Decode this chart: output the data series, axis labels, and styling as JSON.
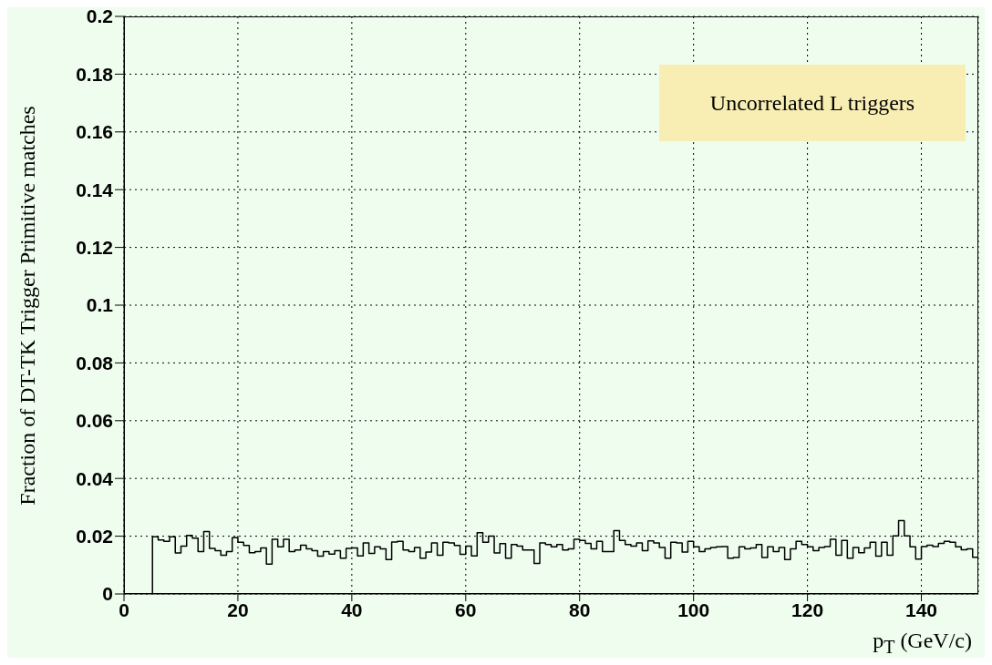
{
  "chart_data": {
    "type": "histogram",
    "xlabel": "p$_{T}$ (GeV/c)",
    "ylabel": "Fraction of DT-TK Trigger Primitive matches",
    "annotations": [
      "Uncorrelated L triggers"
    ],
    "bins": [
      5,
      6,
      7,
      8,
      9,
      10,
      11,
      12,
      13,
      14,
      15,
      16,
      17,
      18,
      19,
      20,
      21,
      22,
      23,
      24,
      25,
      26,
      27,
      28,
      29,
      30,
      31,
      32,
      33,
      34,
      35,
      36,
      37,
      38,
      39,
      40,
      41,
      42,
      43,
      44,
      45,
      46,
      47,
      48,
      49,
      50,
      51,
      52,
      53,
      54,
      55,
      56,
      57,
      58,
      59,
      60,
      61,
      62,
      63,
      64,
      65,
      66,
      67,
      68,
      69,
      70,
      71,
      72,
      73,
      74,
      75,
      76,
      77,
      78,
      79,
      80,
      81,
      82,
      83,
      84,
      85,
      86,
      87,
      88,
      89,
      90,
      91,
      92,
      93,
      94,
      95,
      96,
      97,
      98,
      99,
      100,
      101,
      102,
      103,
      104,
      105,
      106,
      107,
      108,
      109,
      110,
      111,
      112,
      113,
      114,
      115,
      116,
      117,
      118,
      119,
      120,
      121,
      122,
      123,
      124,
      125,
      126,
      127,
      128,
      129,
      130,
      131,
      132,
      133,
      134,
      135,
      136,
      137,
      138,
      139,
      140,
      141,
      142,
      143,
      144,
      145,
      146,
      147,
      148,
      149,
      150
    ],
    "values": [
      0.0198,
      0.0187,
      0.0182,
      0.0198,
      0.0142,
      0.0166,
      0.0203,
      0.0193,
      0.0147,
      0.0216,
      0.0158,
      0.015,
      0.0134,
      0.0147,
      0.0195,
      0.0179,
      0.0168,
      0.0143,
      0.0147,
      0.0159,
      0.0103,
      0.0189,
      0.0163,
      0.0189,
      0.0147,
      0.0152,
      0.0169,
      0.0156,
      0.015,
      0.0131,
      0.0147,
      0.0138,
      0.015,
      0.0124,
      0.0158,
      0.0159,
      0.0132,
      0.0177,
      0.014,
      0.0163,
      0.0156,
      0.0119,
      0.018,
      0.0182,
      0.0152,
      0.0147,
      0.0161,
      0.0124,
      0.0145,
      0.0177,
      0.0134,
      0.0179,
      0.0177,
      0.0168,
      0.0137,
      0.0166,
      0.0132,
      0.0212,
      0.0179,
      0.02,
      0.0142,
      0.0174,
      0.0124,
      0.0171,
      0.0166,
      0.0152,
      0.0152,
      0.0106,
      0.0177,
      0.0171,
      0.0163,
      0.0171,
      0.0152,
      0.0156,
      0.0189,
      0.0185,
      0.0175,
      0.0156,
      0.0182,
      0.0147,
      0.0147,
      0.0219,
      0.0185,
      0.0171,
      0.0166,
      0.0177,
      0.015,
      0.0184,
      0.0177,
      0.0161,
      0.0124,
      0.0179,
      0.0177,
      0.0145,
      0.0182,
      0.0163,
      0.0147,
      0.0156,
      0.0161,
      0.0163,
      0.0164,
      0.0124,
      0.0126,
      0.0163,
      0.0156,
      0.0159,
      0.0171,
      0.0126,
      0.0163,
      0.0147,
      0.0161,
      0.0119,
      0.0156,
      0.0182,
      0.0171,
      0.0163,
      0.015,
      0.0161,
      0.0164,
      0.0189,
      0.0134,
      0.0185,
      0.0124,
      0.0161,
      0.0143,
      0.0159,
      0.0179,
      0.0131,
      0.0179,
      0.0134,
      0.0201,
      0.0254,
      0.0201,
      0.0163,
      0.0121,
      0.0164,
      0.0169,
      0.0164,
      0.0175,
      0.0182,
      0.0179,
      0.0163,
      0.0153,
      0.0156,
      0.0127
    ],
    "color": "#000000",
    "xlim": [
      0,
      150
    ],
    "xticks": [
      0,
      20,
      40,
      60,
      80,
      100,
      120,
      140
    ],
    "ylim": [
      0,
      0.2
    ],
    "yticks": [
      0,
      0.02,
      0.04,
      0.06,
      0.08,
      0.1,
      0.12,
      0.14,
      0.16,
      0.18,
      0.2
    ],
    "grid": true
  }
}
